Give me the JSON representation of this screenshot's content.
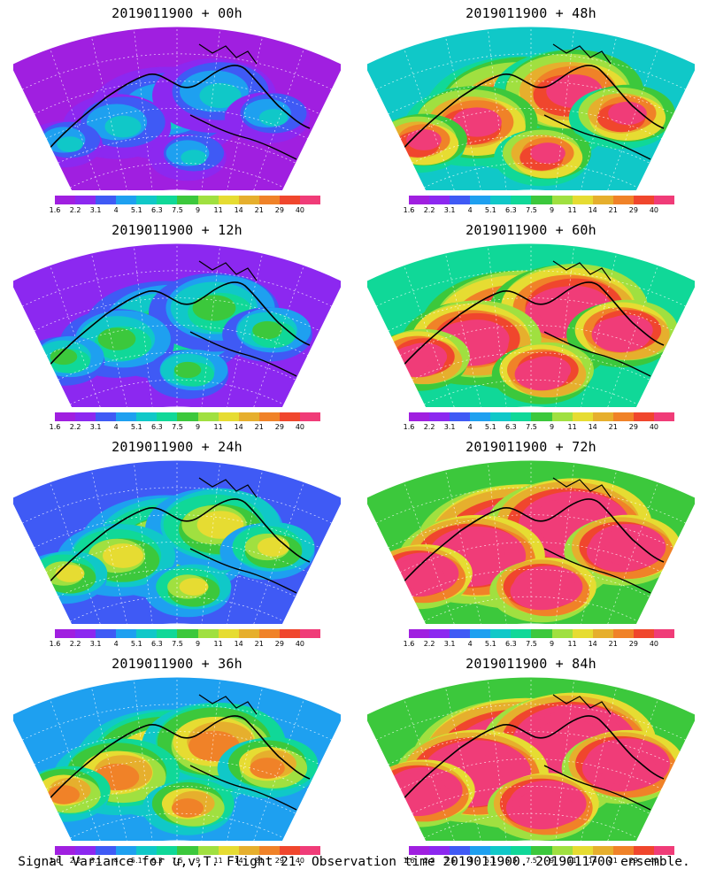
{
  "caption": "Signal Variance for u,v,T. Flight 21. Observation time 2019011900. 2019011700 ensemble.",
  "colorbar": {
    "ticks": [
      "1.6",
      "2.2",
      "3.1",
      "4",
      "5.1",
      "6.3",
      "7.5",
      "9",
      "11",
      "14",
      "21",
      "29",
      "40"
    ],
    "colors": [
      "#a01fe0",
      "#8c28f0",
      "#3f5af5",
      "#1ea0f0",
      "#10c8c8",
      "#10d898",
      "#3cc83c",
      "#a0e040",
      "#e6dc32",
      "#e6af2d",
      "#f08228",
      "#f0462d",
      "#f03c78"
    ]
  },
  "panels": [
    {
      "title": "2019011900 + 00h",
      "level": 0
    },
    {
      "title": "2019011900 + 48h",
      "level": 4
    },
    {
      "title": "2019011900 + 12h",
      "level": 1
    },
    {
      "title": "2019011900 + 60h",
      "level": 5
    },
    {
      "title": "2019011900 + 24h",
      "level": 2
    },
    {
      "title": "2019011900 + 72h",
      "level": 6
    },
    {
      "title": "2019011900 + 36h",
      "level": 3
    },
    {
      "title": "2019011900 + 84h",
      "level": 7
    }
  ]
}
